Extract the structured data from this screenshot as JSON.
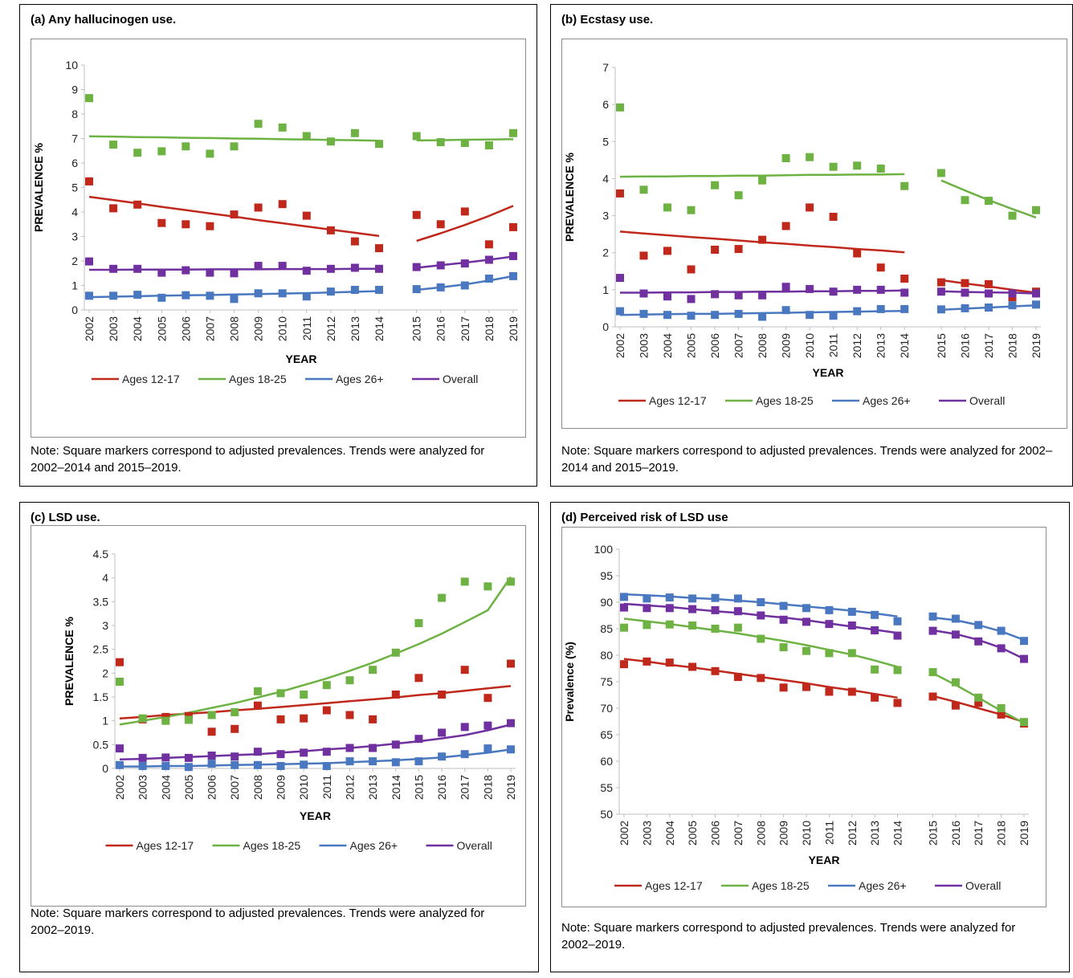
{
  "chart_data": [
    {
      "type": "line",
      "panel": "a",
      "title": "(a) Any hallucinogen use.",
      "xlabel": "YEAR",
      "ylabel": "PREVALENCE %",
      "ylim": [
        0,
        10
      ],
      "ytick_step": 1,
      "y_suffix": "",
      "x": [
        "2002",
        "2003",
        "2004",
        "2005",
        "2006",
        "2007",
        "2008",
        "2009",
        "2010",
        "2011",
        "2012",
        "2013",
        "2014",
        "2015",
        "2016",
        "2017",
        "2018",
        "2019"
      ],
      "gap_after": "2014",
      "trend_segments": [
        [
          0,
          12
        ],
        [
          13,
          17
        ]
      ],
      "legend": [
        "Ages 12-17",
        "Ages 18-25",
        "Ages 26+",
        "Overall"
      ],
      "note": "Note: Square markers correspond to adjusted prevalences. Trends were analyzed for 2002–2014 and 2015–2019.",
      "series": [
        {
          "name": "Ages 12-17",
          "color": "#c0281c",
          "points": [
            5.25,
            4.15,
            4.3,
            3.55,
            3.5,
            3.42,
            3.9,
            4.18,
            4.32,
            3.85,
            3.25,
            2.8,
            2.52,
            3.88,
            3.5,
            4.02,
            2.68,
            3.38
          ],
          "trend": [
            4.62,
            4.49,
            4.35,
            4.21,
            4.08,
            3.94,
            3.81,
            3.67,
            3.54,
            3.41,
            3.28,
            3.15,
            3.02,
            2.82,
            3.13,
            3.47,
            3.84,
            4.25
          ]
        },
        {
          "name": "Ages 18-25",
          "color": "#6eb244",
          "points": [
            8.65,
            6.75,
            6.42,
            6.48,
            6.68,
            6.38,
            6.68,
            7.6,
            7.45,
            7.1,
            6.88,
            7.22,
            6.78,
            7.1,
            6.85,
            6.82,
            6.72,
            7.22
          ],
          "trend": [
            7.09,
            7.08,
            7.06,
            7.05,
            7.03,
            7.02,
            7.0,
            6.99,
            6.97,
            6.96,
            6.94,
            6.93,
            6.91,
            6.92,
            6.93,
            6.95,
            6.96,
            6.97
          ]
        },
        {
          "name": "Ages 26+",
          "color": "#4a78c0",
          "points": [
            0.58,
            0.58,
            0.62,
            0.5,
            0.6,
            0.58,
            0.45,
            0.68,
            0.68,
            0.55,
            0.75,
            0.82,
            0.82,
            0.85,
            0.92,
            1.0,
            1.28,
            1.38
          ],
          "trend": [
            0.52,
            0.54,
            0.56,
            0.58,
            0.6,
            0.61,
            0.63,
            0.65,
            0.67,
            0.69,
            0.71,
            0.74,
            0.77,
            0.82,
            0.92,
            1.04,
            1.2,
            1.38
          ]
        },
        {
          "name": "Overall",
          "color": "#7030a0",
          "points": [
            1.98,
            1.68,
            1.68,
            1.52,
            1.62,
            1.52,
            1.5,
            1.8,
            1.8,
            1.6,
            1.68,
            1.72,
            1.68,
            1.75,
            1.82,
            1.9,
            2.05,
            2.2
          ],
          "trend": [
            1.64,
            1.64,
            1.65,
            1.65,
            1.65,
            1.66,
            1.66,
            1.66,
            1.67,
            1.67,
            1.67,
            1.68,
            1.68,
            1.72,
            1.83,
            1.93,
            2.05,
            2.18
          ]
        }
      ]
    },
    {
      "type": "line",
      "panel": "b",
      "title": "(b) Ecstasy use.",
      "xlabel": "YEAR",
      "ylabel": "PREVALENCE %",
      "ylim": [
        0,
        7
      ],
      "ytick_step": 1,
      "y_suffix": "",
      "x": [
        "2002",
        "2003",
        "2004",
        "2005",
        "2006",
        "2007",
        "2008",
        "2009",
        "2010",
        "2011",
        "2012",
        "2013",
        "2014",
        "2015",
        "2016",
        "2017",
        "2018",
        "2019"
      ],
      "gap_after": "2014",
      "trend_segments": [
        [
          0,
          12
        ],
        [
          13,
          17
        ]
      ],
      "legend": [
        "Ages 12-17",
        "Ages 18-25",
        "Ages 26+",
        "Overall"
      ],
      "note": "Note: Square markers correspond to adjusted prevalences. Trends were analyzed for 2002–2014 and 2015–2019.",
      "series": [
        {
          "name": "Ages 12-17",
          "color": "#c0281c",
          "points": [
            3.6,
            1.92,
            2.05,
            1.55,
            2.08,
            2.1,
            2.35,
            2.72,
            3.22,
            2.97,
            1.98,
            1.6,
            1.3,
            1.2,
            1.18,
            1.15,
            0.8,
            0.95
          ],
          "trend": [
            2.57,
            2.52,
            2.47,
            2.42,
            2.38,
            2.33,
            2.28,
            2.24,
            2.19,
            2.15,
            2.1,
            2.06,
            2.01,
            1.26,
            1.17,
            1.09,
            1.0,
            0.92
          ]
        },
        {
          "name": "Ages 18-25",
          "color": "#6eb244",
          "points": [
            5.92,
            3.7,
            3.22,
            3.15,
            3.82,
            3.55,
            3.95,
            4.55,
            4.58,
            4.32,
            4.35,
            4.27,
            3.8,
            4.15,
            3.42,
            3.4,
            3.0,
            3.15
          ],
          "trend": [
            4.05,
            4.06,
            4.06,
            4.07,
            4.07,
            4.08,
            4.08,
            4.09,
            4.1,
            4.1,
            4.11,
            4.11,
            4.12,
            3.95,
            3.68,
            3.42,
            3.18,
            2.95
          ]
        },
        {
          "name": "Ages 26+",
          "color": "#4a78c0",
          "points": [
            0.42,
            0.35,
            0.32,
            0.3,
            0.32,
            0.35,
            0.27,
            0.45,
            0.32,
            0.3,
            0.42,
            0.48,
            0.48,
            0.47,
            0.5,
            0.52,
            0.58,
            0.6
          ],
          "trend": [
            0.32,
            0.33,
            0.34,
            0.35,
            0.35,
            0.36,
            0.37,
            0.38,
            0.39,
            0.4,
            0.41,
            0.42,
            0.43,
            0.46,
            0.49,
            0.52,
            0.55,
            0.58
          ]
        },
        {
          "name": "Overall",
          "color": "#7030a0",
          "points": [
            1.32,
            0.9,
            0.82,
            0.75,
            0.88,
            0.85,
            0.85,
            1.08,
            1.02,
            0.95,
            1.0,
            1.0,
            0.92,
            0.95,
            0.92,
            0.9,
            0.9,
            0.9
          ],
          "trend": [
            0.92,
            0.92,
            0.93,
            0.93,
            0.94,
            0.94,
            0.95,
            0.95,
            0.96,
            0.96,
            0.97,
            0.97,
            0.98,
            0.96,
            0.94,
            0.93,
            0.92,
            0.9
          ]
        }
      ]
    },
    {
      "type": "line",
      "panel": "c",
      "title": "(c) LSD use.",
      "xlabel": "YEAR",
      "ylabel": "PREVALENCE %",
      "ylim": [
        0,
        4.5
      ],
      "ytick_step": 0.5,
      "y_suffix": "",
      "x": [
        "2002",
        "2003",
        "2004",
        "2005",
        "2006",
        "2007",
        "2008",
        "2009",
        "2010",
        "2011",
        "2012",
        "2013",
        "2014",
        "2015",
        "2016",
        "2017",
        "2018",
        "2019"
      ],
      "gap_after": null,
      "trend_segments": [
        [
          0,
          17
        ]
      ],
      "legend": [
        "Ages 12-17",
        "Ages 18-25",
        "Ages 26+",
        "Overall"
      ],
      "note": "Note: Square markers correspond to adjusted prevalences. Trends were analyzed for 2002–2019.",
      "series": [
        {
          "name": "Ages 12-17",
          "color": "#c0281c",
          "points": [
            2.23,
            1.03,
            1.08,
            1.1,
            0.77,
            0.83,
            1.32,
            1.03,
            1.05,
            1.22,
            1.12,
            1.03,
            1.55,
            1.9,
            1.55,
            2.07,
            1.48,
            2.2
          ],
          "trend": [
            1.05,
            1.08,
            1.12,
            1.15,
            1.18,
            1.22,
            1.25,
            1.29,
            1.33,
            1.37,
            1.41,
            1.45,
            1.49,
            1.54,
            1.58,
            1.63,
            1.68,
            1.73
          ]
        },
        {
          "name": "Ages 18-25",
          "color": "#6eb244",
          "points": [
            1.82,
            1.05,
            1.0,
            1.02,
            1.12,
            1.18,
            1.62,
            1.58,
            1.55,
            1.75,
            1.85,
            2.07,
            2.43,
            3.05,
            3.58,
            3.92,
            3.82,
            3.92
          ],
          "trend": [
            0.92,
            1.0,
            1.08,
            1.17,
            1.27,
            1.37,
            1.49,
            1.61,
            1.75,
            1.89,
            2.05,
            2.22,
            2.41,
            2.61,
            2.83,
            3.07,
            3.32,
            4.02
          ]
        },
        {
          "name": "Ages 26+",
          "color": "#4a78c0",
          "points": [
            0.07,
            0.05,
            0.05,
            0.03,
            0.1,
            0.07,
            0.07,
            0.05,
            0.08,
            0.05,
            0.15,
            0.15,
            0.13,
            0.15,
            0.25,
            0.3,
            0.42,
            0.4
          ],
          "trend": [
            0.04,
            0.04,
            0.05,
            0.05,
            0.06,
            0.07,
            0.08,
            0.09,
            0.1,
            0.11,
            0.13,
            0.15,
            0.17,
            0.2,
            0.23,
            0.28,
            0.33,
            0.4
          ]
        },
        {
          "name": "Overall",
          "color": "#7030a0",
          "points": [
            0.42,
            0.22,
            0.23,
            0.22,
            0.27,
            0.25,
            0.35,
            0.3,
            0.33,
            0.35,
            0.43,
            0.43,
            0.5,
            0.62,
            0.75,
            0.87,
            0.9,
            0.95
          ],
          "trend": [
            0.19,
            0.2,
            0.22,
            0.24,
            0.26,
            0.28,
            0.3,
            0.33,
            0.36,
            0.4,
            0.43,
            0.47,
            0.52,
            0.57,
            0.63,
            0.7,
            0.8,
            0.92
          ]
        }
      ]
    },
    {
      "type": "line",
      "panel": "d",
      "title": "(d) Perceived risk of LSD use",
      "xlabel": "YEAR",
      "ylabel": "Prevalence (%)",
      "ylim": [
        50,
        100
      ],
      "ytick_step": 5,
      "y_suffix": "",
      "x": [
        "2002",
        "2003",
        "2004",
        "2005",
        "2006",
        "2007",
        "2008",
        "2009",
        "2010",
        "2011",
        "2012",
        "2013",
        "2014",
        "2015",
        "2016",
        "2017",
        "2018",
        "2019"
      ],
      "gap_after": "2014",
      "trend_segments": [
        [
          0,
          12
        ],
        [
          13,
          17
        ]
      ],
      "legend": [
        "Ages 12-17",
        "Ages 18-25",
        "Ages 26+",
        "Overall"
      ],
      "note": "Note: Square markers correspond to adjusted prevalences. Trends were analyzed for 2002–2019.",
      "series": [
        {
          "name": "Ages 12-17",
          "color": "#c0281c",
          "points": [
            78.3,
            78.8,
            78.6,
            77.8,
            77.0,
            75.9,
            75.7,
            73.9,
            74.0,
            73.1,
            73.1,
            72.0,
            71.0,
            72.2,
            70.5,
            71.0,
            68.8,
            67.1
          ],
          "trend": [
            79.3,
            78.8,
            78.2,
            77.7,
            77.1,
            76.5,
            75.9,
            75.3,
            74.7,
            74.0,
            73.4,
            72.7,
            72.0,
            72.3,
            71.2,
            70.0,
            68.8,
            67.4
          ]
        },
        {
          "name": "Ages 18-25",
          "color": "#6eb244",
          "points": [
            85.2,
            85.7,
            85.8,
            85.6,
            85.0,
            85.2,
            83.1,
            81.5,
            80.8,
            80.4,
            80.4,
            77.3,
            77.2,
            76.8,
            74.9,
            72.0,
            70.0,
            67.4
          ],
          "trend": [
            86.9,
            86.4,
            85.9,
            85.3,
            84.7,
            84.1,
            83.4,
            82.7,
            81.9,
            81.0,
            80.1,
            79.0,
            77.8,
            76.6,
            74.4,
            72.0,
            69.5,
            67.2
          ]
        },
        {
          "name": "Ages 26+",
          "color": "#4a78c0",
          "points": [
            91.0,
            90.7,
            90.9,
            90.7,
            90.8,
            90.7,
            90.0,
            89.3,
            88.9,
            88.5,
            88.2,
            87.6,
            86.4,
            87.3,
            86.9,
            85.7,
            84.6,
            82.7
          ],
          "trend": [
            91.5,
            91.3,
            91.1,
            90.8,
            90.6,
            90.3,
            90.0,
            89.6,
            89.2,
            88.8,
            88.4,
            87.9,
            87.3,
            87.1,
            86.6,
            85.7,
            84.5,
            82.9
          ]
        },
        {
          "name": "Overall",
          "color": "#7030a0",
          "points": [
            89.0,
            88.9,
            88.9,
            88.7,
            88.5,
            88.3,
            87.5,
            86.7,
            86.3,
            85.9,
            85.6,
            84.7,
            83.7,
            84.6,
            83.9,
            82.6,
            81.3,
            79.3
          ],
          "trend": [
            89.7,
            89.4,
            89.1,
            88.7,
            88.3,
            88.0,
            87.5,
            87.1,
            86.6,
            86.0,
            85.4,
            84.8,
            84.2,
            84.7,
            84.0,
            82.9,
            81.4,
            79.3
          ]
        }
      ]
    }
  ]
}
